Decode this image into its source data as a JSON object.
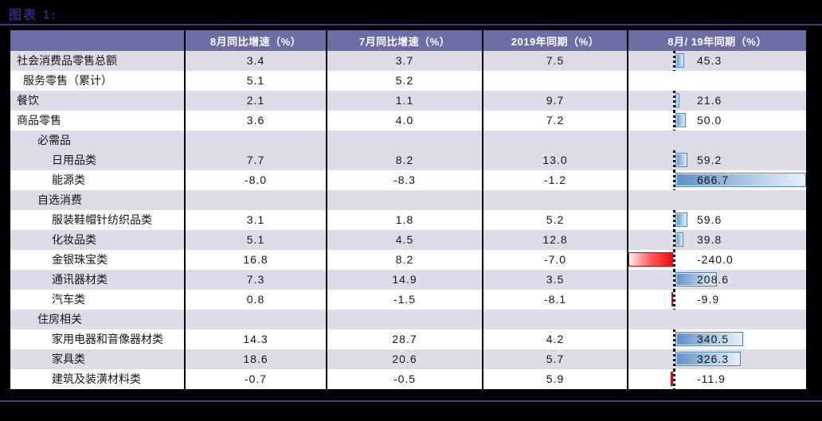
{
  "title": "图表 1:",
  "colors": {
    "page_background": "#000000",
    "title_text": "#2b2b7c",
    "rule_line": "#3e3e80",
    "header_background": "#6b6ea6",
    "header_text": "#ffffff",
    "row_shade": "#dcdce9",
    "row_plain": "#ffffff",
    "positive_bar_border": "#4f81bd",
    "positive_bar_fill": "#9dbede",
    "negative_bar_border": "#cc0000",
    "negative_bar_fill": "#f40b0b",
    "cell_text": "#141414"
  },
  "table": {
    "headers": [
      "",
      "8月同比增速（%）",
      "7月同比增速（%）",
      "2019年同期（%）",
      "8月/ 19年同期（%）"
    ],
    "rows": [
      {
        "label": "社会消费品零售总额",
        "indent": 0,
        "aug": "3.4",
        "jul": "3.7",
        "y2019": "7.5",
        "ratio": 45.3,
        "shade": true
      },
      {
        "label": "服务零售（累计）",
        "indent": 1,
        "aug": "5.1",
        "jul": "5.2",
        "y2019": "",
        "ratio": null,
        "shade": false
      },
      {
        "label": "餐饮",
        "indent": 0,
        "aug": "2.1",
        "jul": "1.1",
        "y2019": "9.7",
        "ratio": 21.6,
        "shade": true
      },
      {
        "label": "商品零售",
        "indent": 0,
        "aug": "3.6",
        "jul": "4.0",
        "y2019": "7.2",
        "ratio": 50.0,
        "shade": false
      },
      {
        "label": "必需品",
        "indent": 2,
        "aug": "",
        "jul": "",
        "y2019": "",
        "ratio": null,
        "shade": true
      },
      {
        "label": "日用品类",
        "indent": 3,
        "aug": "7.7",
        "jul": "8.2",
        "y2019": "13.0",
        "ratio": 59.2,
        "shade": true
      },
      {
        "label": "能源类",
        "indent": 3,
        "aug": "-8.0",
        "jul": "-8.3",
        "y2019": "-1.2",
        "ratio": 666.7,
        "shade": false
      },
      {
        "label": "自选消费",
        "indent": 2,
        "aug": "",
        "jul": "",
        "y2019": "",
        "ratio": null,
        "shade": true
      },
      {
        "label": "服装鞋帽针纺织品类",
        "indent": 3,
        "aug": "3.1",
        "jul": "1.8",
        "y2019": "5.2",
        "ratio": 59.6,
        "shade": false
      },
      {
        "label": "化妆品类",
        "indent": 3,
        "aug": "5.1",
        "jul": "4.5",
        "y2019": "12.8",
        "ratio": 39.8,
        "shade": true
      },
      {
        "label": "金银珠宝类",
        "indent": 3,
        "aug": "16.8",
        "jul": "8.2",
        "y2019": "-7.0",
        "ratio": -240.0,
        "shade": false
      },
      {
        "label": "通讯器材类",
        "indent": 3,
        "aug": "7.3",
        "jul": "14.9",
        "y2019": "3.5",
        "ratio": 208.6,
        "shade": true
      },
      {
        "label": "汽车类",
        "indent": 3,
        "aug": "0.8",
        "jul": "-1.5",
        "y2019": "-8.1",
        "ratio": -9.9,
        "shade": false
      },
      {
        "label": "住房相关",
        "indent": 2,
        "aug": "",
        "jul": "",
        "y2019": "",
        "ratio": null,
        "shade": true
      },
      {
        "label": "家用电器和音像器材类",
        "indent": 3,
        "aug": "14.3",
        "jul": "28.7",
        "y2019": "4.2",
        "ratio": 340.5,
        "shade": false
      },
      {
        "label": "家具类",
        "indent": 3,
        "aug": "18.6",
        "jul": "20.6",
        "y2019": "5.7",
        "ratio": 326.3,
        "shade": true
      },
      {
        "label": "建筑及装潢材料类",
        "indent": 3,
        "aug": "-0.7",
        "jul": "-0.5",
        "y2019": "5.9",
        "ratio": -11.9,
        "shade": false
      }
    ]
  },
  "chart_data": {
    "type": "table",
    "title": "图表 1:",
    "categories": [
      "社会消费品零售总额",
      "服务零售（累计）",
      "餐饮",
      "商品零售",
      "必需品",
      "日用品类",
      "能源类",
      "自选消费",
      "服装鞋帽针纺织品类",
      "化妆品类",
      "金银珠宝类",
      "通讯器材类",
      "汽车类",
      "住房相关",
      "家用电器和音像器材类",
      "家具类",
      "建筑及装潢材料类"
    ],
    "series": [
      {
        "name": "8月同比增速（%）",
        "values": [
          3.4,
          5.1,
          2.1,
          3.6,
          null,
          7.7,
          -8.0,
          null,
          3.1,
          5.1,
          16.8,
          7.3,
          0.8,
          null,
          14.3,
          18.6,
          -0.7
        ]
      },
      {
        "name": "7月同比增速（%）",
        "values": [
          3.7,
          5.2,
          1.1,
          4.0,
          null,
          8.2,
          -8.3,
          null,
          1.8,
          4.5,
          8.2,
          14.9,
          -1.5,
          null,
          28.7,
          20.6,
          -0.5
        ]
      },
      {
        "name": "2019年同期（%）",
        "values": [
          7.5,
          null,
          9.7,
          7.2,
          null,
          13.0,
          -1.2,
          null,
          5.2,
          12.8,
          -7.0,
          3.5,
          -8.1,
          null,
          4.2,
          5.7,
          5.9
        ]
      },
      {
        "name": "8月/ 19年同期（%）",
        "values": [
          45.3,
          null,
          21.6,
          50.0,
          null,
          59.2,
          666.7,
          null,
          59.6,
          39.8,
          -240.0,
          208.6,
          -9.9,
          null,
          340.5,
          326.3,
          -11.9
        ],
        "render": "data-bar",
        "positive_color": "#9dbede",
        "negative_color": "#f40b0b"
      }
    ],
    "legend_position": "none",
    "grid": false
  }
}
